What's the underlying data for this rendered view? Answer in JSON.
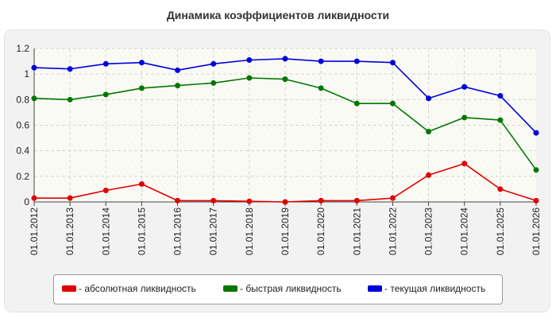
{
  "chart_data": {
    "type": "line",
    "title": "Динамика коэффициентов ликвидности",
    "x": [
      "01.01.2012",
      "01.01.2013",
      "01.01.2014",
      "01.01.2015",
      "01.01.2016",
      "01.01.2017",
      "01.01.2018",
      "01.01.2019",
      "01.01.2020",
      "01.01.2021",
      "01.01.2022",
      "01.01.2023",
      "01.01.2024",
      "01.01.2025",
      "01.01.2026"
    ],
    "yticks": [
      "0",
      "0.2",
      "0.4",
      "0.6",
      "0.8",
      "1",
      "1.2"
    ],
    "ylim": [
      0,
      1.2
    ],
    "grid": true,
    "legend_position": "bottom",
    "series": [
      {
        "name": "- абсолютная ликвидность",
        "color": "#e00000",
        "values": [
          0.03,
          0.03,
          0.09,
          0.14,
          0.01,
          0.01,
          0.005,
          0.0,
          0.01,
          0.01,
          0.03,
          0.21,
          0.3,
          0.1,
          0.01
        ]
      },
      {
        "name": "- быстрая ликвидность",
        "color": "#007800",
        "values": [
          0.81,
          0.8,
          0.84,
          0.89,
          0.91,
          0.93,
          0.97,
          0.96,
          0.89,
          0.77,
          0.77,
          0.55,
          0.66,
          0.64,
          0.25
        ]
      },
      {
        "name": "- текущая ликвидность",
        "color": "#0000e0",
        "values": [
          1.05,
          1.04,
          1.08,
          1.09,
          1.03,
          1.08,
          1.11,
          1.12,
          1.1,
          1.1,
          1.09,
          0.81,
          0.9,
          0.83,
          0.54
        ]
      }
    ]
  }
}
